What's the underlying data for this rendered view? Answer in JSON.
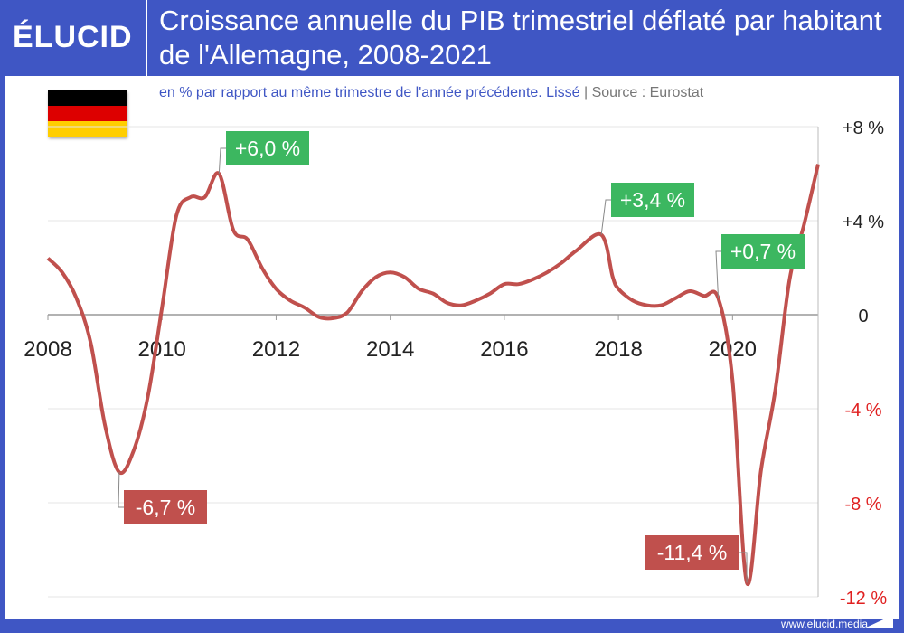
{
  "header": {
    "logo": "ÉLUCID",
    "title": "Croissance annuelle du PIB trimestriel déflaté par habitant de l'Allemagne, 2008-2021",
    "subtitle": "en % par rapport au même trimestre de l'année précédente. Lissé",
    "separator": "|",
    "source": "Source : Eurostat"
  },
  "footer": {
    "url": "www.elucid.media"
  },
  "colors": {
    "line": "#c0504d",
    "positive": "#3cb760",
    "negative": "#c0504d",
    "brand": "#3f56c4",
    "neg_tick": "#e02020"
  },
  "chart_data": {
    "type": "line",
    "title": "Croissance annuelle du PIB trimestriel déflaté par habitant de l'Allemagne, 2008-2021",
    "xlim": [
      2008,
      2021.5
    ],
    "ylim": [
      -12,
      8
    ],
    "x_ticks": [
      2008,
      2010,
      2012,
      2014,
      2016,
      2018,
      2020
    ],
    "x_tick_labels": [
      "2008",
      "2010",
      "2012",
      "2014",
      "2016",
      "2018",
      "2020"
    ],
    "y_ticks": [
      8,
      4,
      0,
      -4,
      -8,
      -12
    ],
    "y_tick_labels": [
      "+8 %",
      "+4 %",
      "0",
      "-4 %",
      "-8 %",
      "-12 %"
    ],
    "series": [
      {
        "name": "Allemagne",
        "x": [
          2008,
          2008.25,
          2008.5,
          2008.75,
          2009,
          2009.25,
          2009.5,
          2009.75,
          2010,
          2010.25,
          2010.5,
          2010.75,
          2011,
          2011.25,
          2011.5,
          2011.75,
          2012,
          2012.25,
          2012.5,
          2012.75,
          2013,
          2013.25,
          2013.5,
          2013.75,
          2014,
          2014.25,
          2014.5,
          2014.75,
          2015,
          2015.25,
          2015.5,
          2015.75,
          2016,
          2016.25,
          2016.5,
          2016.75,
          2017,
          2017.25,
          2017.7,
          2017.9,
          2018,
          2018.25,
          2018.5,
          2018.75,
          2019,
          2019.25,
          2019.5,
          2019.75,
          2020,
          2020.25,
          2020.5,
          2020.75,
          2021,
          2021.25,
          2021.5
        ],
        "values": [
          2.4,
          1.8,
          0.7,
          -1.2,
          -4.7,
          -6.7,
          -5.8,
          -3.5,
          0.3,
          4.2,
          5.0,
          5.0,
          6.0,
          3.6,
          3.2,
          2.0,
          1.1,
          0.6,
          0.3,
          -0.1,
          -0.15,
          0.1,
          1.0,
          1.6,
          1.8,
          1.6,
          1.1,
          0.9,
          0.5,
          0.4,
          0.6,
          0.9,
          1.3,
          1.3,
          1.5,
          1.8,
          2.2,
          2.7,
          3.4,
          1.6,
          1.1,
          0.6,
          0.4,
          0.4,
          0.7,
          1.0,
          0.8,
          0.7,
          -2.8,
          -11.4,
          -6.6,
          -3.2,
          1.5,
          3.8,
          6.4
        ]
      }
    ],
    "annotations": [
      {
        "text": "+6,0 %",
        "x": 2011,
        "y": 6.0,
        "sign": "positive"
      },
      {
        "text": "-6,7 %",
        "x": 2009.25,
        "y": -6.7,
        "sign": "negative"
      },
      {
        "text": "+3,4 %",
        "x": 2017.7,
        "y": 3.4,
        "sign": "positive"
      },
      {
        "text": "+0,7 %",
        "x": 2019.75,
        "y": 0.7,
        "sign": "positive"
      },
      {
        "text": "-11,4 %",
        "x": 2020.25,
        "y": -11.4,
        "sign": "negative"
      }
    ]
  }
}
